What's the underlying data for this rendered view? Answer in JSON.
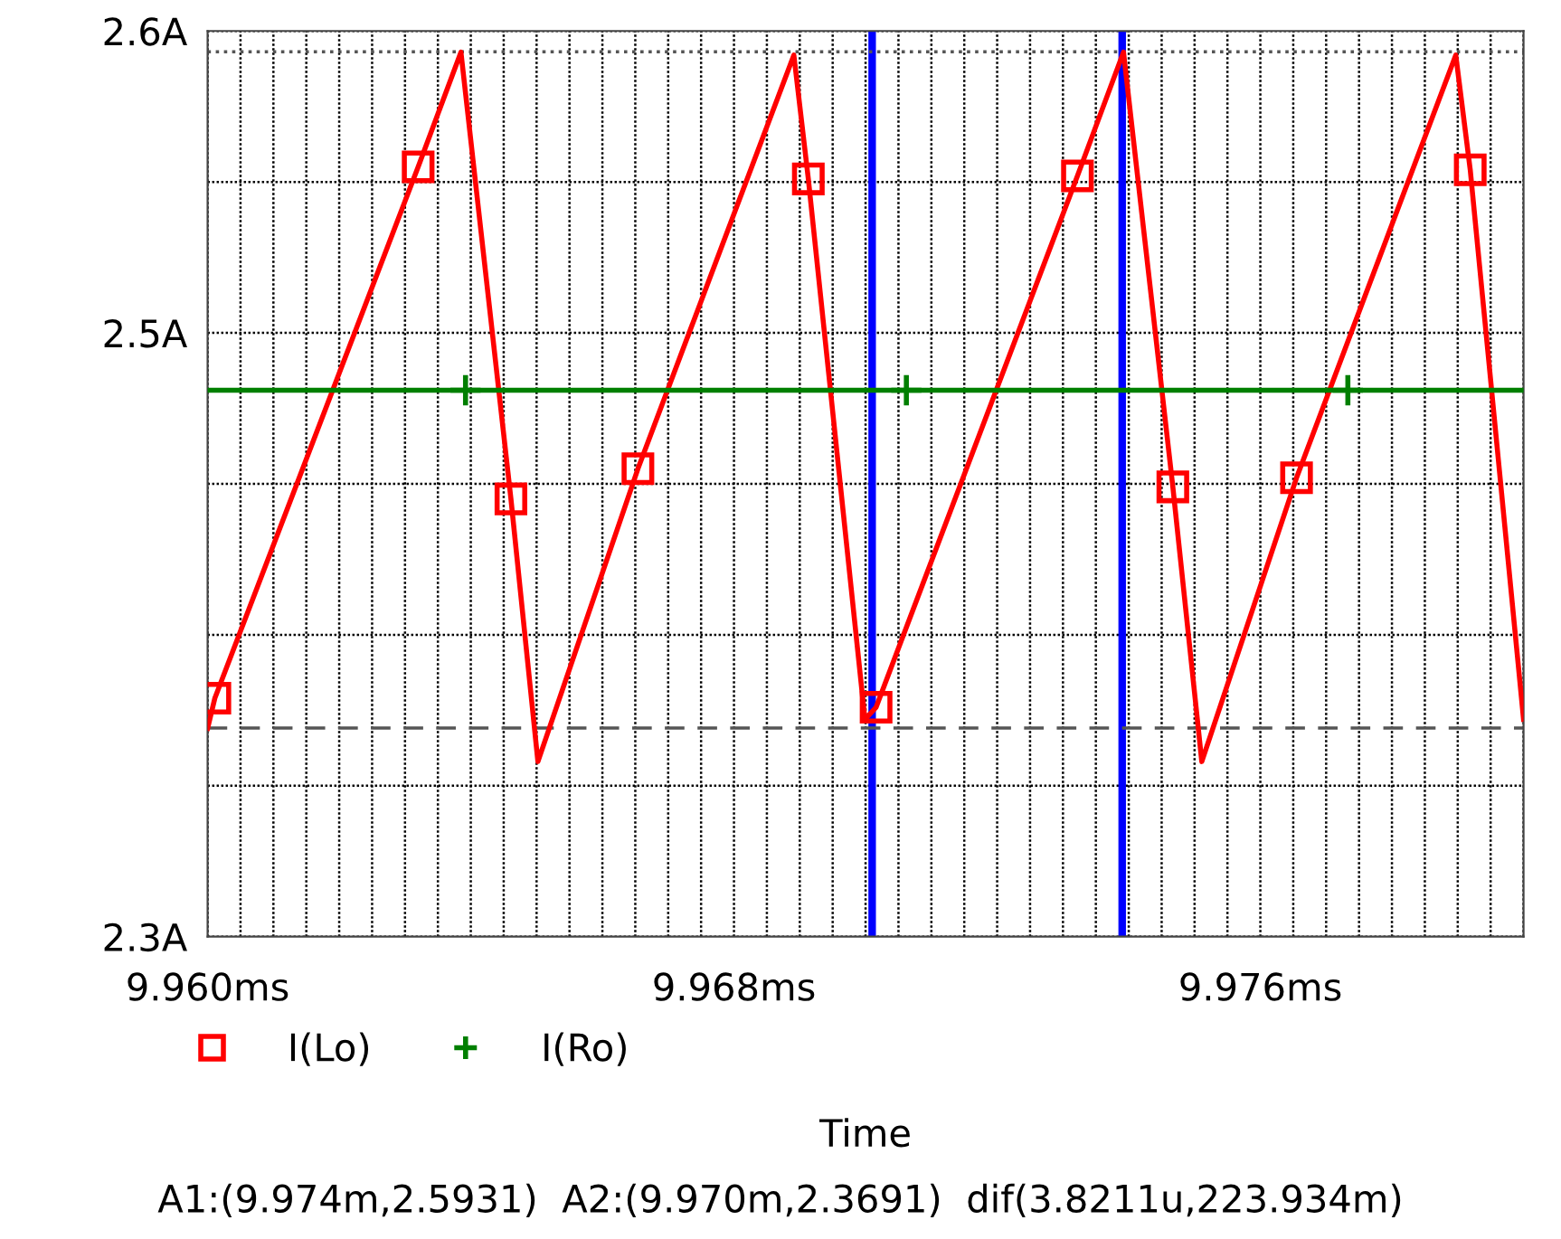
{
  "chart_data": {
    "type": "line",
    "xlabel": "Time",
    "annotations": [
      "A1:(9.974m,2.5931)  A2:(9.970m,2.3691)  dif(3.8211u,223.934m)"
    ],
    "series": [
      {
        "name": "I(Lo)",
        "color": "#ff0000",
        "marker": "square",
        "x": [
          9.96,
          9.96011,
          9.9632,
          9.96385,
          9.96461,
          9.96502,
          9.96654,
          9.96891,
          9.96913,
          9.96999,
          9.97016,
          9.97322,
          9.97392,
          9.97467,
          9.97511,
          9.97655,
          9.97897,
          9.97919,
          9.98
        ],
        "values": [
          2.369,
          2.379,
          2.555,
          2.593,
          2.445,
          2.358,
          2.455,
          2.592,
          2.551,
          2.372,
          2.376,
          2.552,
          2.593,
          2.449,
          2.358,
          2.452,
          2.592,
          2.554,
          2.372
        ]
      },
      {
        "name": "I(Ro)",
        "color": "#007f00",
        "marker": "cross",
        "x": [
          9.96,
          9.96392,
          9.97062,
          9.97733,
          9.98
        ],
        "values": [
          2.481,
          2.481,
          2.481,
          2.481,
          2.481
        ]
      }
    ],
    "xlim": [
      9.96,
      9.98
    ],
    "xticks": [
      {
        "value": 9.96,
        "label": "9.960ms"
      },
      {
        "value": 9.9605,
        "label": null
      },
      {
        "value": 9.961,
        "label": null
      },
      {
        "value": 9.9615,
        "label": null
      },
      {
        "value": 9.962,
        "label": null
      },
      {
        "value": 9.9625,
        "label": null
      },
      {
        "value": 9.963,
        "label": null
      },
      {
        "value": 9.9635,
        "label": null
      },
      {
        "value": 9.964,
        "label": null
      },
      {
        "value": 9.9645,
        "label": null
      },
      {
        "value": 9.965,
        "label": null
      },
      {
        "value": 9.9655,
        "label": null
      },
      {
        "value": 9.966,
        "label": null
      },
      {
        "value": 9.9665,
        "label": null
      },
      {
        "value": 9.967,
        "label": null
      },
      {
        "value": 9.9675,
        "label": null
      },
      {
        "value": 9.968,
        "label": "9.968ms"
      },
      {
        "value": 9.9685,
        "label": null
      },
      {
        "value": 9.969,
        "label": null
      },
      {
        "value": 9.9695,
        "label": null
      },
      {
        "value": 9.97,
        "label": null
      },
      {
        "value": 9.9705,
        "label": null
      },
      {
        "value": 9.971,
        "label": null
      },
      {
        "value": 9.9715,
        "label": null
      },
      {
        "value": 9.972,
        "label": null
      },
      {
        "value": 9.9725,
        "label": null
      },
      {
        "value": 9.973,
        "label": null
      },
      {
        "value": 9.9735,
        "label": null
      },
      {
        "value": 9.974,
        "label": null
      },
      {
        "value": 9.9745,
        "label": null
      },
      {
        "value": 9.975,
        "label": null
      },
      {
        "value": 9.9755,
        "label": null
      },
      {
        "value": 9.976,
        "label": "9.976ms"
      },
      {
        "value": 9.9765,
        "label": null
      },
      {
        "value": 9.977,
        "label": null
      },
      {
        "value": 9.9775,
        "label": null
      },
      {
        "value": 9.978,
        "label": null
      },
      {
        "value": 9.9785,
        "label": null
      },
      {
        "value": 9.979,
        "label": null
      },
      {
        "value": 9.9795,
        "label": null
      },
      {
        "value": 9.98,
        "label": null
      }
    ],
    "ylim": [
      2.3,
      2.6
    ],
    "yticks": [
      {
        "value": 2.3,
        "label": "2.3A"
      },
      {
        "value": 2.35,
        "label": null
      },
      {
        "value": 2.4,
        "label": null
      },
      {
        "value": 2.45,
        "label": null
      },
      {
        "value": 2.5,
        "label": "2.5A"
      },
      {
        "value": 2.55,
        "label": null
      },
      {
        "value": 2.6,
        "label": "2.6A"
      }
    ],
    "ref_lines": [
      {
        "axis": "x",
        "value": 9.9701,
        "color": "#0000ff",
        "line_style": "solid"
      },
      {
        "axis": "x",
        "value": 9.9739,
        "color": "#0000ff",
        "line_style": "solid"
      },
      {
        "axis": "y",
        "value": 2.5931,
        "color": "#555555",
        "line_style": "dotted"
      },
      {
        "axis": "y",
        "value": 2.3691,
        "color": "#555555",
        "line_style": "dashed"
      }
    ],
    "grid": true,
    "legend": "bottom left"
  }
}
